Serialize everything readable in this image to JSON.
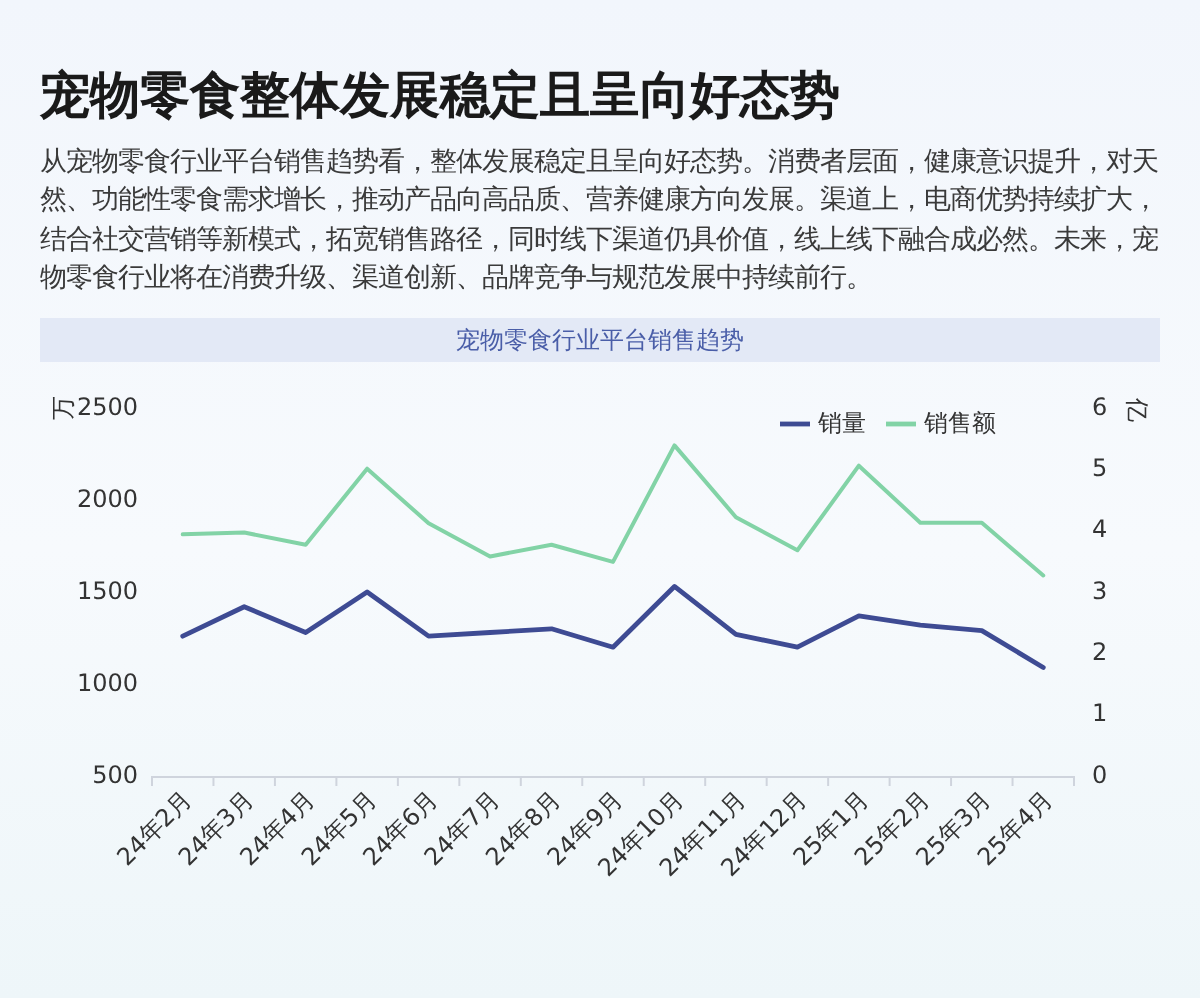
{
  "chart_data": {
    "type": "line",
    "title": "宠物零食整体发展稳定且呈向好态势",
    "subtitle": "宠物零食行业平台销售趋势",
    "annotations": [
      "从宠物零食行业平台销售趋势看，整体发展稳定且呈向好态势。消费者层面，健康意识提升，对天然、功能性零食需求增长，推动产品向高品质、营养健康方向发展。渠道上，电商优势持续扩大，结合社交营销等新模式，拓宽销售路径，同时线下渠道仍具价值，线上线下融合成必然。未来，宠物零食行业将在消费升级、渠道创新、品牌竞争与规范发展中持续前行。"
    ],
    "ylabel": "万",
    "y2label": "亿",
    "categories": [
      "24年2月",
      "24年3月",
      "24年4月",
      "24年5月",
      "24年6月",
      "24年7月",
      "24年8月",
      "24年9月",
      "24年10月",
      "24年11月",
      "24年12月",
      "25年1月",
      "25年2月",
      "25年3月",
      "25年4月"
    ],
    "series": [
      {
        "name": "销量",
        "color": "#3e4b93",
        "values": [
          1260,
          1420,
          1280,
          1500,
          1260,
          1280,
          1300,
          1200,
          1530,
          1270,
          1200,
          1370,
          1320,
          1290,
          1090
        ]
      },
      {
        "name": "销售额",
        "color": "#82d3a6",
        "axis": "y2",
        "values": [
          3.94,
          3.97,
          3.77,
          5.01,
          4.12,
          3.58,
          3.77,
          3.49,
          5.39,
          4.22,
          3.68,
          5.06,
          4.13,
          4.13,
          3.27
        ]
      }
    ],
    "ylim": [
      500,
      2500
    ],
    "yticks": [
      500,
      1000,
      1500,
      2000,
      2500
    ],
    "y2lim": [
      0,
      6
    ],
    "y2ticks": [
      0,
      1,
      2,
      3,
      4,
      5,
      6
    ],
    "grid": false,
    "legend": "top right",
    "marker": "none",
    "line_style": "solid"
  }
}
